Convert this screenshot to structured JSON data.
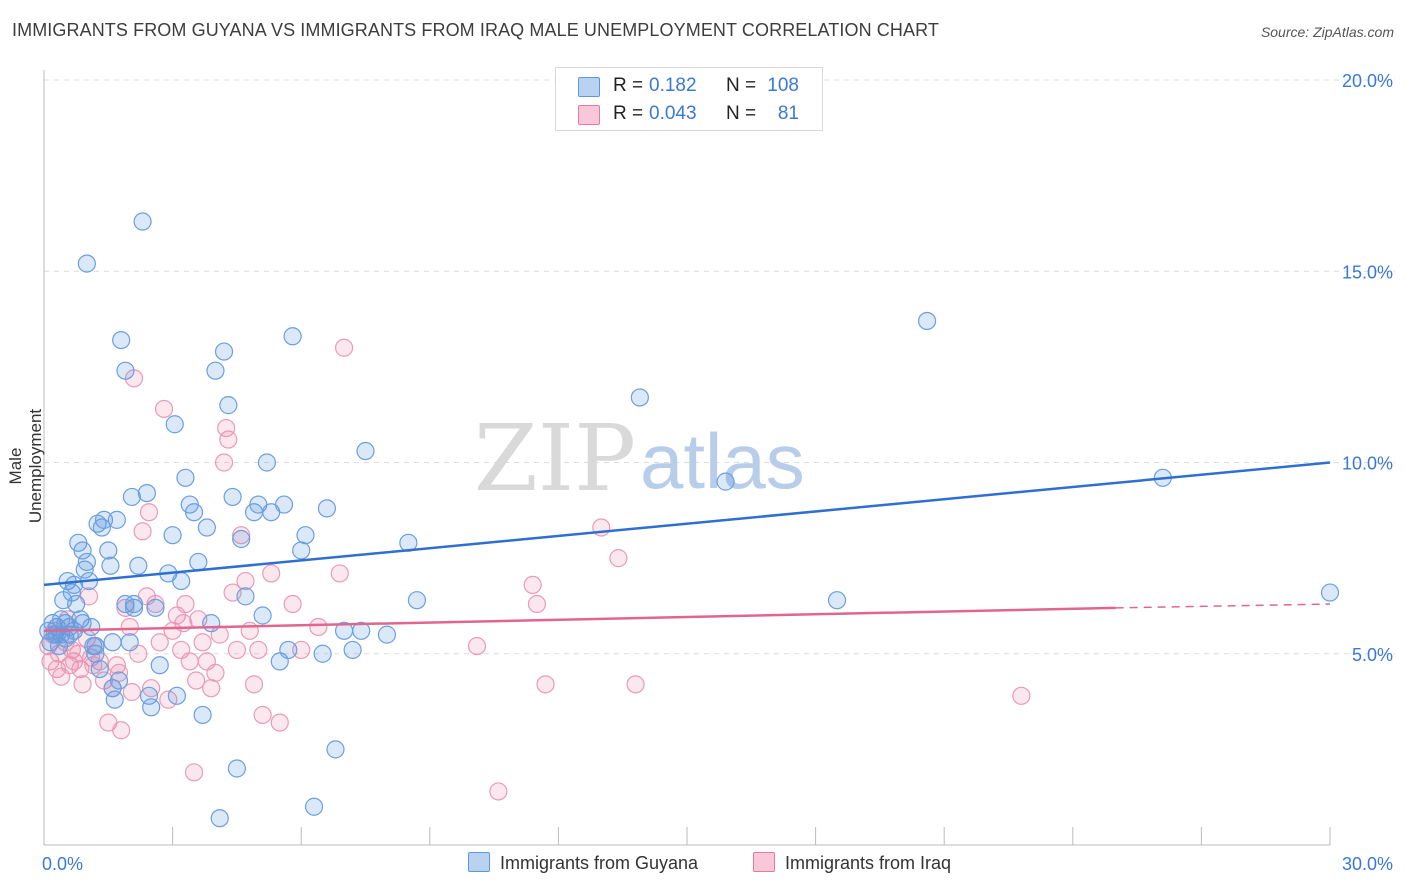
{
  "title": "IMMIGRANTS FROM GUYANA VS IMMIGRANTS FROM IRAQ MALE UNEMPLOYMENT CORRELATION CHART",
  "source": "Source: ZipAtlas.com",
  "watermark": {
    "zip": "ZIP",
    "atlas": "atlas"
  },
  "legend": {
    "rows": [
      {
        "r_label": "R =",
        "r_value": "0.182",
        "n_label": "N =",
        "n_value": "108",
        "color": "#5b96e0"
      },
      {
        "r_label": "R =",
        "r_value": "0.043",
        "n_label": "N =",
        "n_value": "81",
        "color": "#e87aa0"
      }
    ]
  },
  "bottom_legend": {
    "guyana": "Immigrants from Guyana",
    "iraq": "Immigrants from Iraq"
  },
  "chart_data": {
    "type": "scatter",
    "title": "IMMIGRANTS FROM GUYANA VS IMMIGRANTS FROM IRAQ MALE UNEMPLOYMENT CORRELATION CHART",
    "xlabel": "",
    "ylabel": "Male Unemployment",
    "xlim": [
      0,
      30
    ],
    "ylim": [
      0,
      20
    ],
    "x_tick_labels": [
      "0.0%",
      "30.0%"
    ],
    "y_tick_labels": [
      "5.0%",
      "10.0%",
      "15.0%",
      "20.0%"
    ],
    "y_ticks": [
      5,
      10,
      15,
      20
    ],
    "grid": true,
    "series": [
      {
        "name": "Immigrants from Guyana",
        "color": "#5b96e0",
        "trend": {
          "x": [
            0,
            30
          ],
          "y": [
            6.8,
            10.0
          ],
          "dashed_from": null
        },
        "points": [
          [
            0.1,
            5.6
          ],
          [
            0.15,
            5.3
          ],
          [
            0.2,
            5.8
          ],
          [
            0.25,
            5.5
          ],
          [
            0.3,
            5.7
          ],
          [
            0.35,
            5.2
          ],
          [
            0.4,
            5.5
          ],
          [
            0.45,
            6.4
          ],
          [
            0.5,
            5.8
          ],
          [
            0.55,
            6.9
          ],
          [
            0.6,
            5.5
          ],
          [
            0.65,
            6.6
          ],
          [
            0.7,
            6.8
          ],
          [
            0.75,
            6.3
          ],
          [
            0.8,
            7.9
          ],
          [
            0.85,
            5.9
          ],
          [
            0.9,
            7.7
          ],
          [
            0.95,
            7.2
          ],
          [
            1.0,
            7.4
          ],
          [
            1.05,
            6.9
          ],
          [
            1.1,
            5.7
          ],
          [
            1.15,
            5.2
          ],
          [
            1.2,
            5.0
          ],
          [
            1.25,
            8.4
          ],
          [
            1.3,
            4.6
          ],
          [
            1.35,
            8.3
          ],
          [
            1.4,
            8.5
          ],
          [
            1.5,
            7.7
          ],
          [
            1.55,
            7.3
          ],
          [
            1.6,
            4.1
          ],
          [
            1.65,
            3.8
          ],
          [
            1.7,
            8.5
          ],
          [
            1.75,
            4.3
          ],
          [
            1.8,
            13.2
          ],
          [
            1.9,
            6.3
          ],
          [
            2.0,
            5.3
          ],
          [
            2.05,
            9.1
          ],
          [
            2.1,
            6.3
          ],
          [
            2.2,
            7.3
          ],
          [
            2.3,
            16.3
          ],
          [
            2.4,
            9.2
          ],
          [
            2.45,
            3.9
          ],
          [
            2.5,
            3.6
          ],
          [
            2.6,
            6.2
          ],
          [
            2.9,
            7.1
          ],
          [
            3.0,
            8.1
          ],
          [
            3.05,
            11.0
          ],
          [
            3.1,
            3.9
          ],
          [
            3.2,
            6.9
          ],
          [
            3.3,
            9.6
          ],
          [
            3.4,
            8.9
          ],
          [
            3.5,
            8.7
          ],
          [
            3.6,
            7.4
          ],
          [
            3.7,
            3.4
          ],
          [
            3.8,
            8.3
          ],
          [
            3.9,
            5.8
          ],
          [
            4.0,
            12.4
          ],
          [
            4.1,
            0.7
          ],
          [
            4.2,
            12.9
          ],
          [
            4.3,
            11.5
          ],
          [
            4.4,
            9.1
          ],
          [
            4.5,
            2.0
          ],
          [
            4.6,
            8.0
          ],
          [
            4.7,
            6.5
          ],
          [
            4.9,
            8.7
          ],
          [
            5.0,
            8.9
          ],
          [
            5.1,
            6.0
          ],
          [
            5.2,
            10.0
          ],
          [
            5.3,
            8.7
          ],
          [
            5.5,
            4.8
          ],
          [
            5.6,
            8.9
          ],
          [
            5.7,
            5.1
          ],
          [
            5.8,
            13.3
          ],
          [
            6.0,
            7.7
          ],
          [
            6.1,
            8.1
          ],
          [
            6.3,
            1.0
          ],
          [
            6.5,
            5.0
          ],
          [
            6.6,
            8.8
          ],
          [
            6.8,
            2.5
          ],
          [
            7.0,
            5.6
          ],
          [
            7.2,
            5.1
          ],
          [
            7.4,
            5.6
          ],
          [
            7.5,
            10.3
          ],
          [
            8.0,
            5.5
          ],
          [
            8.5,
            7.9
          ],
          [
            8.7,
            6.4
          ],
          [
            13.9,
            11.7
          ],
          [
            15.9,
            9.5
          ],
          [
            18.5,
            6.4
          ],
          [
            20.6,
            13.7
          ],
          [
            26.1,
            9.6
          ],
          [
            30.0,
            6.6
          ],
          [
            0.3,
            5.5
          ],
          [
            0.5,
            5.4
          ],
          [
            0.7,
            5.6
          ],
          [
            0.9,
            5.8
          ],
          [
            1.2,
            5.2
          ],
          [
            1.6,
            5.3
          ],
          [
            2.1,
            6.2
          ],
          [
            1.9,
            12.4
          ],
          [
            1.0,
            15.2
          ],
          [
            0.6,
            5.7
          ],
          [
            0.4,
            5.9
          ],
          [
            2.7,
            4.7
          ]
        ]
      },
      {
        "name": "Immigrants from Iraq",
        "color": "#e87aa0",
        "trend": {
          "x": [
            0,
            25
          ],
          "y": [
            5.6,
            6.2
          ],
          "dashed_to": [
            30,
            6.3
          ]
        },
        "points": [
          [
            0.1,
            5.2
          ],
          [
            0.15,
            4.8
          ],
          [
            0.2,
            5.5
          ],
          [
            0.3,
            4.6
          ],
          [
            0.35,
            5.0
          ],
          [
            0.4,
            4.4
          ],
          [
            0.5,
            5.3
          ],
          [
            0.6,
            4.7
          ],
          [
            0.65,
            5.1
          ],
          [
            0.7,
            4.8
          ],
          [
            0.8,
            5.0
          ],
          [
            0.85,
            4.6
          ],
          [
            0.9,
            4.2
          ],
          [
            1.0,
            5.4
          ],
          [
            1.05,
            6.5
          ],
          [
            1.1,
            4.9
          ],
          [
            1.2,
            5.2
          ],
          [
            1.3,
            4.8
          ],
          [
            1.4,
            4.3
          ],
          [
            1.5,
            3.2
          ],
          [
            1.6,
            4.1
          ],
          [
            1.7,
            4.7
          ],
          [
            1.8,
            3.0
          ],
          [
            1.9,
            6.2
          ],
          [
            2.0,
            5.7
          ],
          [
            2.1,
            12.2
          ],
          [
            2.2,
            5.0
          ],
          [
            2.3,
            8.2
          ],
          [
            2.4,
            6.5
          ],
          [
            2.5,
            4.1
          ],
          [
            2.6,
            6.3
          ],
          [
            2.7,
            5.3
          ],
          [
            2.8,
            11.4
          ],
          [
            2.9,
            3.8
          ],
          [
            3.0,
            5.6
          ],
          [
            3.1,
            6.0
          ],
          [
            3.2,
            5.1
          ],
          [
            3.3,
            6.3
          ],
          [
            3.4,
            4.8
          ],
          [
            3.5,
            1.9
          ],
          [
            3.6,
            5.9
          ],
          [
            3.7,
            5.3
          ],
          [
            3.8,
            4.8
          ],
          [
            3.9,
            4.1
          ],
          [
            4.0,
            4.5
          ],
          [
            4.1,
            5.5
          ],
          [
            4.2,
            10.0
          ],
          [
            4.3,
            10.6
          ],
          [
            4.4,
            6.6
          ],
          [
            4.5,
            5.1
          ],
          [
            4.6,
            8.1
          ],
          [
            4.7,
            6.9
          ],
          [
            4.8,
            5.6
          ],
          [
            4.9,
            4.2
          ],
          [
            5.0,
            5.1
          ],
          [
            5.1,
            3.4
          ],
          [
            5.3,
            7.1
          ],
          [
            5.5,
            3.2
          ],
          [
            5.8,
            6.3
          ],
          [
            6.0,
            5.1
          ],
          [
            6.4,
            5.7
          ],
          [
            6.9,
            7.1
          ],
          [
            7.0,
            13.0
          ],
          [
            10.1,
            5.2
          ],
          [
            10.6,
            1.4
          ],
          [
            11.4,
            6.8
          ],
          [
            11.5,
            6.3
          ],
          [
            11.7,
            4.2
          ],
          [
            13.0,
            8.3
          ],
          [
            13.4,
            7.5
          ],
          [
            13.8,
            4.2
          ],
          [
            22.8,
            3.9
          ],
          [
            1.15,
            4.7
          ],
          [
            2.45,
            8.7
          ],
          [
            3.25,
            5.8
          ],
          [
            1.75,
            4.5
          ],
          [
            0.55,
            5.9
          ],
          [
            2.05,
            4.0
          ],
          [
            4.25,
            10.9
          ],
          [
            3.55,
            4.3
          ],
          [
            0.25,
            5.6
          ]
        ]
      }
    ]
  }
}
